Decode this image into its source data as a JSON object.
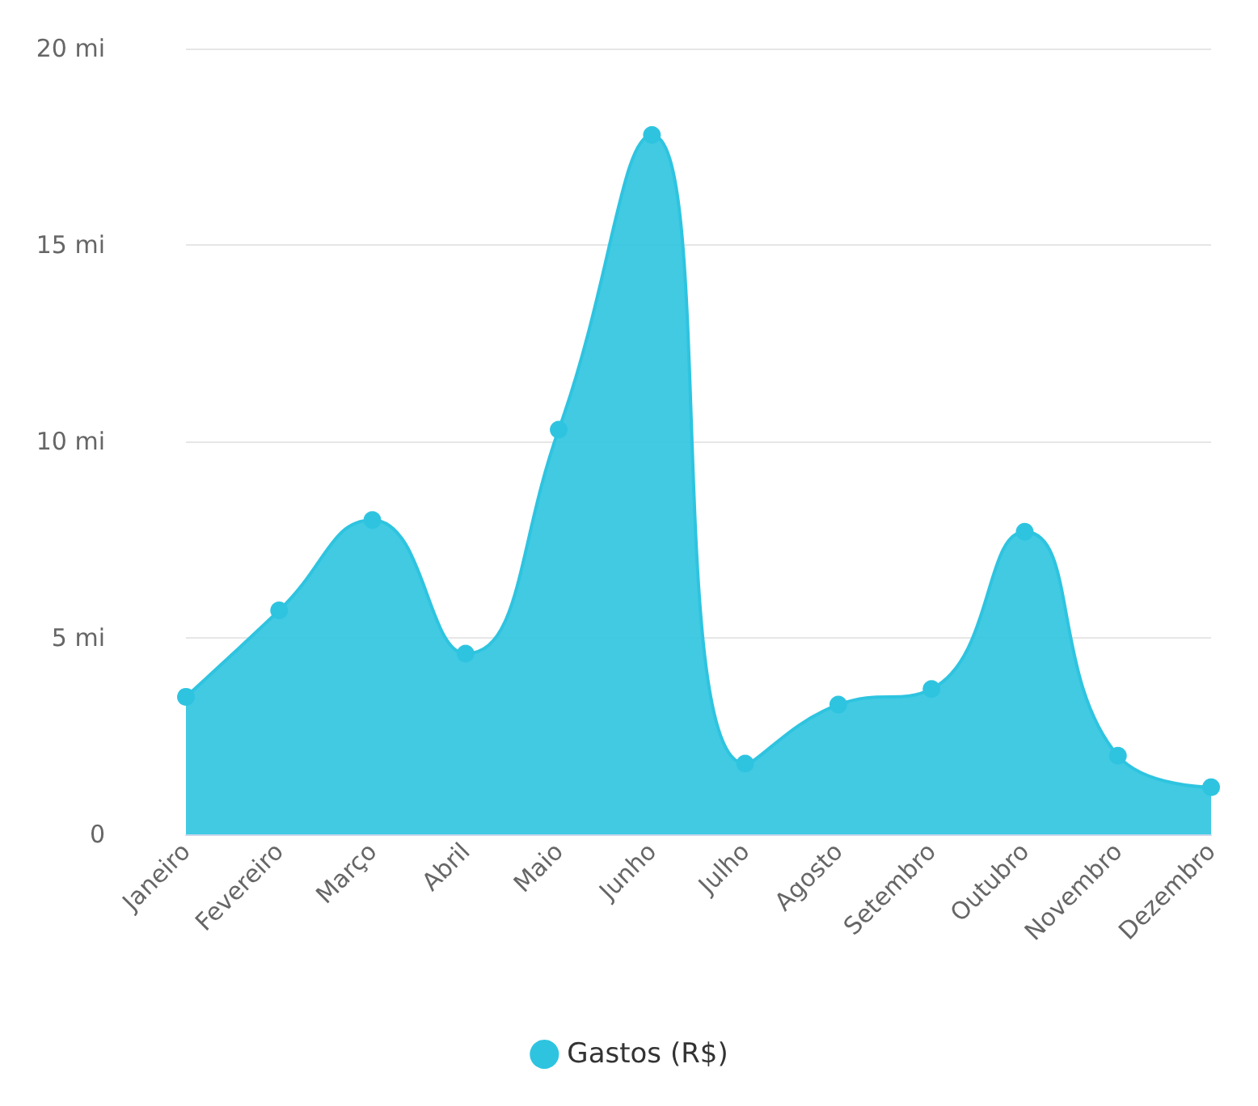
{
  "chart_data": {
    "type": "area",
    "categories": [
      "Janeiro",
      "Fevereiro",
      "Março",
      "Abril",
      "Maio",
      "Junho",
      "Julho",
      "Agosto",
      "Setembro",
      "Outubro",
      "Novembro",
      "Dezembro"
    ],
    "series": [
      {
        "name": "Gastos (R$)",
        "color": "#2ec4e0",
        "values": [
          3.5,
          5.7,
          8.0,
          4.6,
          10.3,
          17.8,
          1.8,
          3.3,
          3.7,
          7.7,
          2.0,
          1.2
        ]
      }
    ],
    "ylim": [
      0,
      20
    ],
    "yticks": [
      0,
      {
        "value": 5,
        "label": "5 mi"
      },
      {
        "value": 10,
        "label": "10 mi"
      },
      {
        "value": 15,
        "label": "15 mi"
      },
      {
        "value": 20,
        "label": "20 mi"
      }
    ],
    "grid": "y",
    "legend": "bottom",
    "marker": "circle"
  }
}
